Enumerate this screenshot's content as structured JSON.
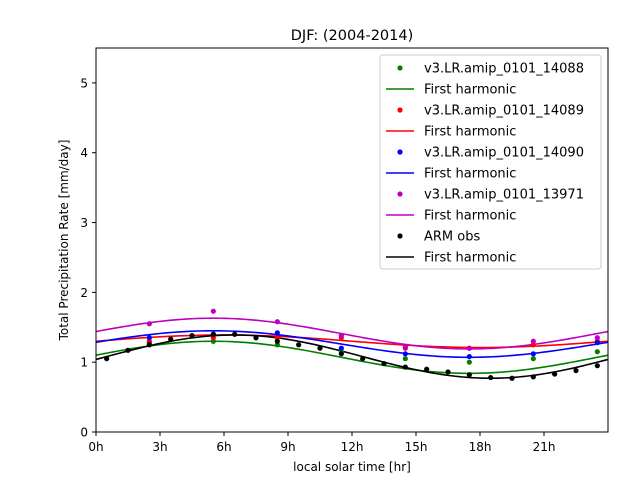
{
  "chart_data": {
    "type": "scatter",
    "title": "DJF: (2004-2014)",
    "xlabel": "local solar time [hr]",
    "ylabel": "Total Precipitation Rate [mm/day]",
    "xlim": [
      0,
      24
    ],
    "ylim": [
      0,
      5.5
    ],
    "x_ticks": [
      0,
      3,
      6,
      9,
      12,
      15,
      18,
      21
    ],
    "x_tick_labels": [
      "0h",
      "3h",
      "6h",
      "9h",
      "12h",
      "15h",
      "18h",
      "21h"
    ],
    "y_ticks": [
      0,
      1,
      2,
      3,
      4,
      5
    ],
    "y_tick_labels": [
      "0",
      "1",
      "2",
      "3",
      "4",
      "5"
    ],
    "grid": false,
    "legend_position": "top-right",
    "series": [
      {
        "name": "v3.LR.amip_0101_14088",
        "fit_name": "First harmonic",
        "color": "#008000",
        "x": [
          2.5,
          5.5,
          8.5,
          11.5,
          14.5,
          17.5,
          20.5,
          23.5
        ],
        "values": [
          1.28,
          1.3,
          1.25,
          1.15,
          1.05,
          1.0,
          1.05,
          1.15
        ],
        "fit": {
          "mean": 1.07,
          "amplitude": 0.23,
          "peak_hour": 5.5
        }
      },
      {
        "name": "v3.LR.amip_0101_14089",
        "fit_name": "First harmonic",
        "color": "#ff0000",
        "x": [
          2.5,
          5.5,
          8.5,
          11.5,
          14.5,
          17.5,
          20.5,
          23.5
        ],
        "values": [
          1.3,
          1.35,
          1.35,
          1.35,
          1.2,
          1.2,
          1.25,
          1.3
        ],
        "fit": {
          "mean": 1.3,
          "amplitude": 0.09,
          "peak_hour": 6.0
        }
      },
      {
        "name": "v3.LR.amip_0101_14090",
        "fit_name": "First harmonic",
        "color": "#0000ff",
        "x": [
          2.5,
          5.5,
          8.5,
          11.5,
          14.5,
          17.5,
          20.5,
          23.5
        ],
        "values": [
          1.35,
          1.4,
          1.42,
          1.2,
          1.12,
          1.08,
          1.12,
          1.28
        ],
        "fit": {
          "mean": 1.26,
          "amplitude": 0.19,
          "peak_hour": 5.5
        }
      },
      {
        "name": "v3.LR.amip_0101_13971",
        "fit_name": "First harmonic",
        "color": "#bf00bf",
        "x": [
          2.5,
          5.5,
          8.5,
          11.5,
          14.5,
          17.5,
          20.5,
          23.5
        ],
        "values": [
          1.55,
          1.73,
          1.58,
          1.38,
          1.22,
          1.2,
          1.3,
          1.35
        ],
        "fit": {
          "mean": 1.41,
          "amplitude": 0.22,
          "peak_hour": 5.5
        }
      },
      {
        "name": "ARM obs",
        "fit_name": "First harmonic",
        "color": "#000000",
        "x": [
          0.5,
          1.5,
          2.5,
          3.5,
          4.5,
          5.5,
          6.5,
          7.5,
          8.5,
          9.5,
          10.5,
          11.5,
          12.5,
          13.5,
          14.5,
          15.5,
          16.5,
          17.5,
          18.5,
          19.5,
          20.5,
          21.5,
          22.5,
          23.5
        ],
        "values": [
          1.05,
          1.17,
          1.25,
          1.33,
          1.38,
          1.4,
          1.4,
          1.35,
          1.3,
          1.25,
          1.2,
          1.12,
          1.05,
          0.98,
          0.93,
          0.9,
          0.86,
          0.82,
          0.78,
          0.77,
          0.79,
          0.83,
          0.88,
          0.95
        ],
        "fit": {
          "mean": 1.08,
          "amplitude": 0.31,
          "peak_hour": 6.5
        }
      }
    ]
  }
}
